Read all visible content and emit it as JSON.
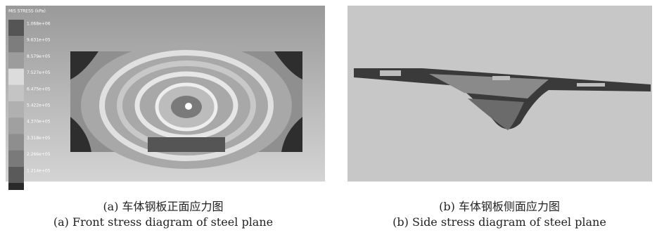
{
  "panels": [
    {
      "legend_title": "MIS STRESS (kPa)",
      "legend_labels": [
        "1.068e+06",
        "9.631e+05",
        "8.579e+05",
        "7.527e+05",
        "6.475e+05",
        "5.422e+05",
        "4.370e+05",
        "3.318e+05",
        "2.266e+05",
        "1.214e+05"
      ],
      "caption_cn": "(a) 车体钢板正面应力图",
      "caption_en": "(a) Front stress diagram of steel plane"
    },
    {
      "caption_cn": "(b) 车体钢板侧面应力图",
      "caption_en": "(b) Side stress diagram of steel plane"
    }
  ]
}
